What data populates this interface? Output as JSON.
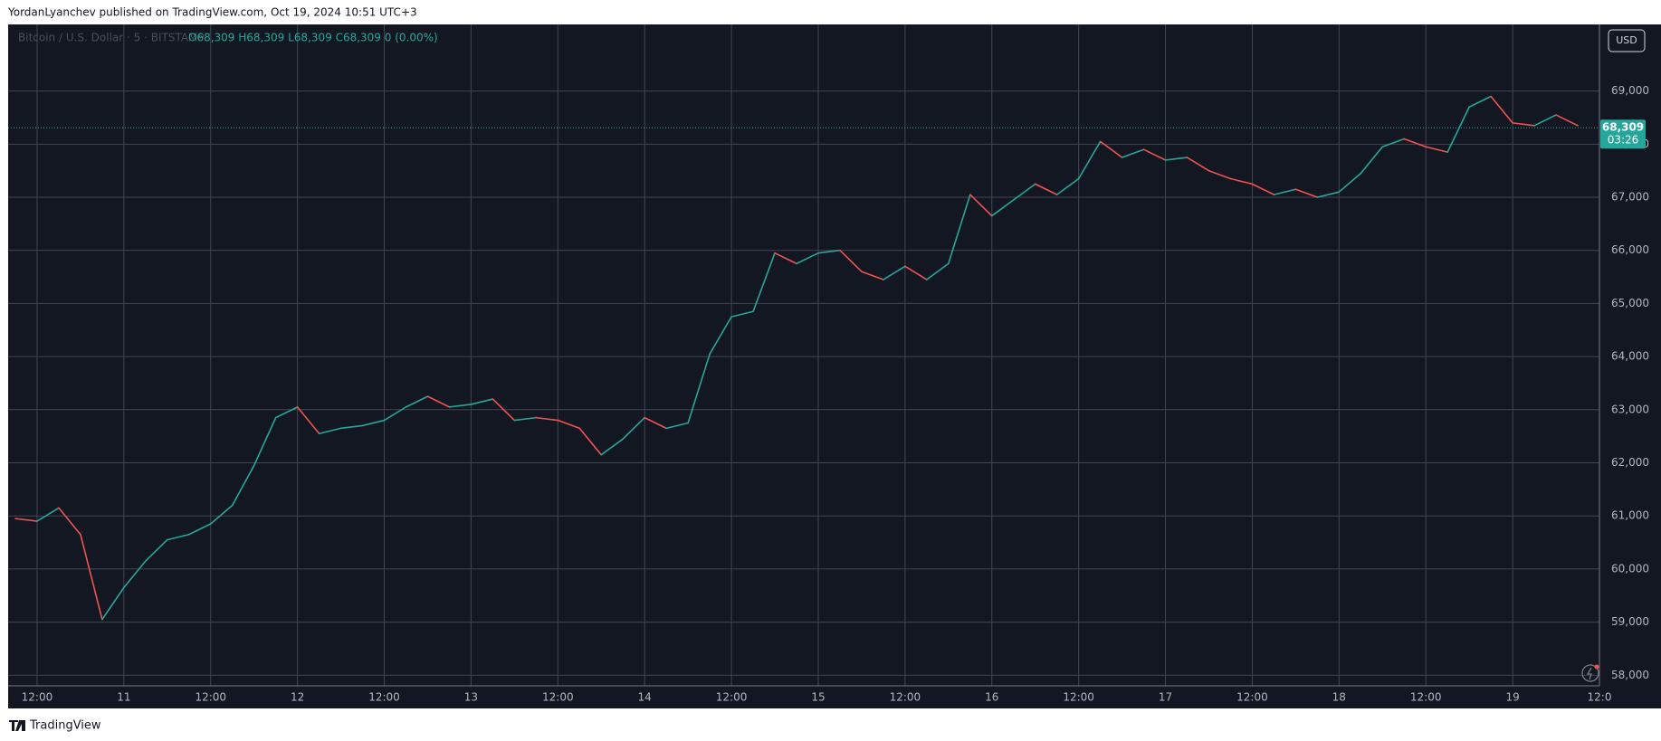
{
  "header": {
    "caption": "YordanLyanchev published on TradingView.com, Oct 19, 2024 10:51 UTC+3"
  },
  "footer": {
    "brand": "TradingView"
  },
  "chart_data": {
    "type": "line",
    "symbol": "Bitcoin / U.S. Dollar · 5 · BITSTAMP",
    "ohlc": "O68,309 H68,309 L68,309 C68,309 0 (0.00%)",
    "currency": "USD",
    "x": [
      "10 09:00",
      "10 12:00",
      "10 15:00",
      "10 18:00",
      "10 21:00",
      "11 00:00",
      "11 03:00",
      "11 06:00",
      "11 09:00",
      "11 12:00",
      "11 15:00",
      "11 18:00",
      "11 21:00",
      "12 00:00",
      "12 03:00",
      "12 06:00",
      "12 09:00",
      "12 12:00",
      "12 15:00",
      "12 18:00",
      "12 21:00",
      "13 00:00",
      "13 03:00",
      "13 06:00",
      "13 09:00",
      "13 12:00",
      "13 15:00",
      "13 18:00",
      "13 21:00",
      "14 00:00",
      "14 03:00",
      "14 06:00",
      "14 09:00",
      "14 12:00",
      "14 15:00",
      "14 18:00",
      "14 21:00",
      "15 00:00",
      "15 03:00",
      "15 06:00",
      "15 09:00",
      "15 12:00",
      "15 15:00",
      "15 18:00",
      "15 21:00",
      "16 00:00",
      "16 03:00",
      "16 06:00",
      "16 09:00",
      "16 12:00",
      "16 15:00",
      "16 18:00",
      "16 21:00",
      "17 00:00",
      "17 03:00",
      "17 06:00",
      "17 09:00",
      "17 12:00",
      "17 15:00",
      "17 18:00",
      "17 21:00",
      "18 00:00",
      "18 03:00",
      "18 06:00",
      "18 09:00",
      "18 12:00",
      "18 15:00",
      "18 18:00",
      "18 21:00",
      "19 00:00",
      "19 03:00",
      "19 06:00",
      "19 09:00"
    ],
    "series": [
      {
        "name": "BTCUSD",
        "up_color": "#26a69a",
        "down_color": "#ef5350",
        "values": [
          60950,
          60900,
          61150,
          60650,
          59050,
          59650,
          60150,
          60550,
          60650,
          60850,
          61200,
          61950,
          62850,
          63050,
          62550,
          62650,
          62700,
          62800,
          63050,
          63250,
          63050,
          63100,
          63200,
          62800,
          62850,
          62800,
          62650,
          62150,
          62450,
          62850,
          62650,
          62750,
          64050,
          64750,
          64850,
          65950,
          65750,
          65950,
          66000,
          65600,
          65450,
          65700,
          65450,
          65750,
          67050,
          66650,
          66950,
          67250,
          67050,
          67350,
          68050,
          67750,
          67900,
          67700,
          67750,
          67500,
          67350,
          67250,
          67050,
          67150,
          67000,
          67100,
          67450,
          67950,
          68100,
          67950,
          67850,
          68700,
          68900,
          68400,
          68350,
          68550,
          68350
        ]
      }
    ],
    "last_price": {
      "value": 68309,
      "label": "68,309"
    },
    "countdown": "03:26",
    "xlim": [
      "10 08:00",
      "19 12:00"
    ],
    "xticks": [
      {
        "value": "10 12:00",
        "label": "12:00"
      },
      {
        "value": "11 00:00",
        "label": "11"
      },
      {
        "value": "11 12:00",
        "label": "12:00"
      },
      {
        "value": "12 00:00",
        "label": "12"
      },
      {
        "value": "12 12:00",
        "label": "12:00"
      },
      {
        "value": "13 00:00",
        "label": "13"
      },
      {
        "value": "13 12:00",
        "label": "12:00"
      },
      {
        "value": "14 00:00",
        "label": "14"
      },
      {
        "value": "14 12:00",
        "label": "12:00"
      },
      {
        "value": "15 00:00",
        "label": "15"
      },
      {
        "value": "15 12:00",
        "label": "12:00"
      },
      {
        "value": "16 00:00",
        "label": "16"
      },
      {
        "value": "16 12:00",
        "label": "12:00"
      },
      {
        "value": "17 00:00",
        "label": "17"
      },
      {
        "value": "17 12:00",
        "label": "12:00"
      },
      {
        "value": "18 00:00",
        "label": "18"
      },
      {
        "value": "18 12:00",
        "label": "12:00"
      },
      {
        "value": "19 00:00",
        "label": "19"
      },
      {
        "value": "19 12:00",
        "label": "12:0"
      }
    ],
    "ylim": [
      57800,
      70255
    ],
    "yticks": [
      {
        "value": 58000,
        "label": "58,000"
      },
      {
        "value": 59000,
        "label": "59,000"
      },
      {
        "value": 60000,
        "label": "60,000"
      },
      {
        "value": 61000,
        "label": "61,000"
      },
      {
        "value": 62000,
        "label": "62,000"
      },
      {
        "value": 63000,
        "label": "63,000"
      },
      {
        "value": 64000,
        "label": "64,000"
      },
      {
        "value": 65000,
        "label": "65,000"
      },
      {
        "value": 66000,
        "label": "66,000"
      },
      {
        "value": 67000,
        "label": "67,000"
      },
      {
        "value": 68000,
        "label": "68,000"
      },
      {
        "value": 69000,
        "label": "69,000"
      }
    ],
    "grid": true,
    "background": "#131722",
    "grid_color": "#434651"
  }
}
